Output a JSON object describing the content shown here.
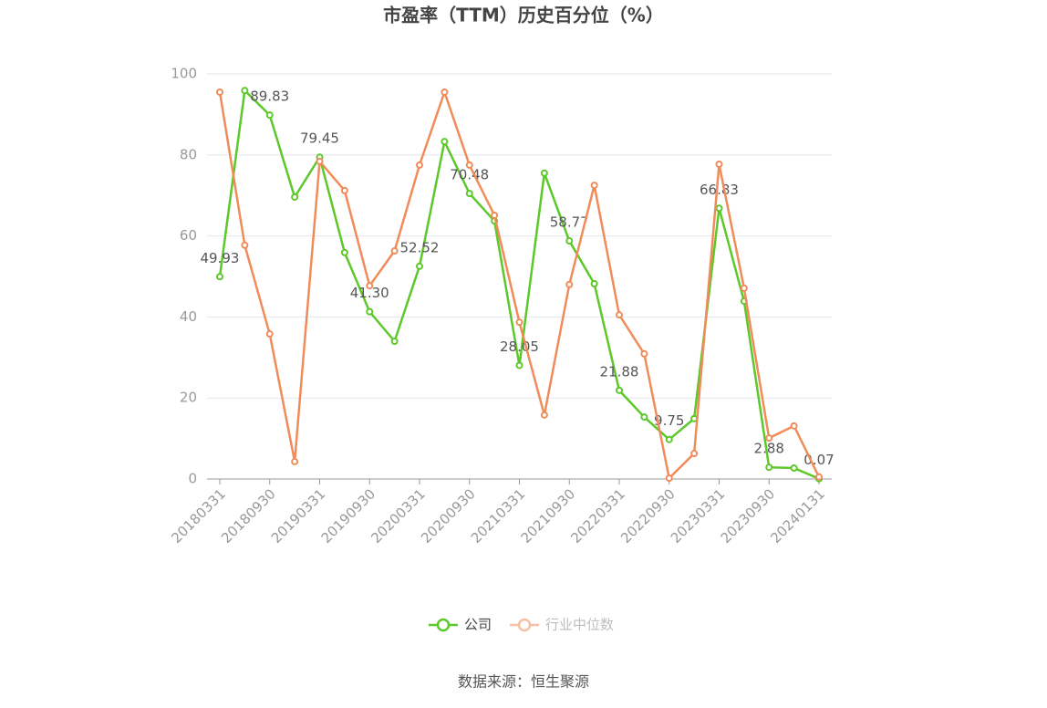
{
  "chart_data": {
    "type": "line",
    "title": "市盈率（TTM）历史百分位（%）",
    "source": "数据来源：恒生聚源",
    "categories": [
      "20180331",
      null,
      "20180930",
      null,
      "20190331",
      null,
      "20190930",
      null,
      "20200331",
      null,
      "20200930",
      null,
      "20210331",
      null,
      "20210930",
      null,
      "20220331",
      null,
      "20220930",
      null,
      "20230331",
      null,
      "20230930",
      null,
      "20240131"
    ],
    "series": [
      {
        "name": "公司",
        "color": "#5cc82a",
        "values": [
          49.93,
          95.9,
          89.83,
          69.6,
          79.45,
          55.9,
          41.3,
          34.0,
          52.52,
          83.3,
          70.48,
          63.7,
          28.05,
          75.5,
          58.77,
          48.2,
          21.88,
          15.3,
          9.75,
          14.9,
          66.83,
          43.9,
          2.88,
          2.7,
          0.07
        ],
        "value_labels": [
          "49.93",
          null,
          "89.83",
          null,
          "79.45",
          null,
          "41.30",
          null,
          "52.52",
          null,
          "70.48",
          null,
          "28.05",
          null,
          "58.77",
          null,
          "21.88",
          null,
          "9.75",
          null,
          "66.83",
          null,
          "2.88",
          null,
          "0.07"
        ]
      },
      {
        "name": "行业中位数",
        "color": "#f08c5a",
        "values": [
          95.5,
          57.7,
          35.8,
          4.3,
          78.4,
          71.2,
          47.7,
          56.3,
          77.5,
          95.5,
          77.5,
          65.1,
          38.7,
          15.8,
          48.0,
          72.5,
          40.5,
          30.9,
          0.2,
          6.3,
          77.7,
          47.1,
          10.1,
          13.1,
          0.5
        ]
      }
    ],
    "ylim": [
      0,
      100
    ],
    "yticks": [
      0,
      20,
      40,
      60,
      80,
      100
    ],
    "grid": true,
    "legend": "bottom"
  }
}
